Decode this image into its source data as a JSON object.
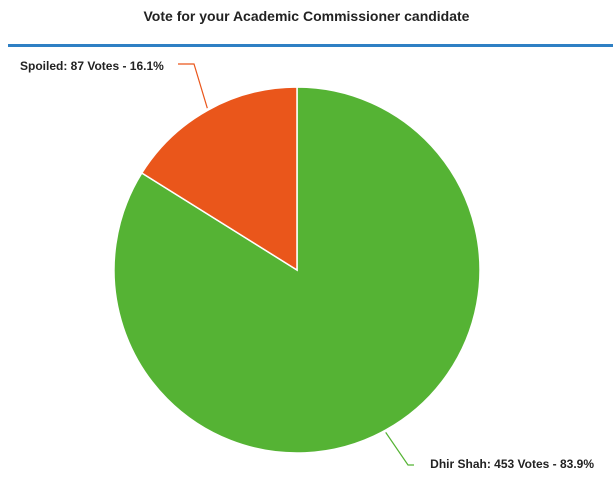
{
  "chart_data": {
    "type": "pie",
    "title": "Vote for your Academic Commissioner candidate",
    "slices": [
      {
        "name": "Dhir Shah",
        "votes": 453,
        "percent": 83.9,
        "color": "#55b334",
        "label": "Dhir Shah: 453 Votes - 83.9%"
      },
      {
        "name": "Spoiled",
        "votes": 87,
        "percent": 16.1,
        "color": "#ea561b",
        "label": "Spoiled: 87 Votes - 16.1%"
      }
    ],
    "legend": "none",
    "rule_color": "#2f80c4"
  }
}
